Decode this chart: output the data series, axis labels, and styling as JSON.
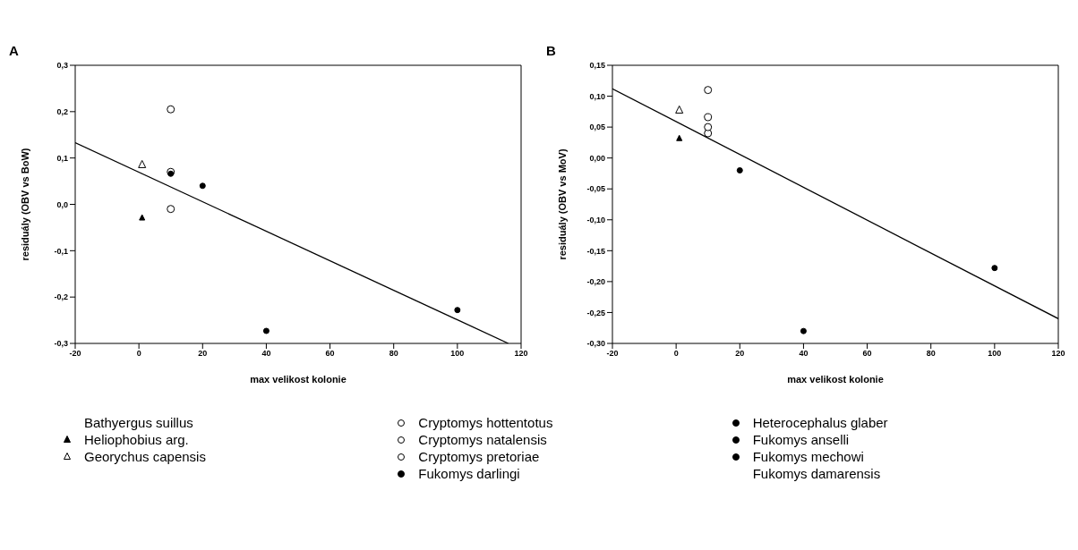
{
  "chart_data": [
    {
      "type": "scatter",
      "title": "A",
      "xlabel": "max velikost kolonie",
      "ylabel": "residuály (OBV vs BoW)",
      "legend": "bottom",
      "xlim": [
        -20,
        120
      ],
      "xticks": [
        -20,
        0,
        20,
        40,
        60,
        80,
        100,
        120
      ],
      "ylim": [
        -0.3,
        0.3
      ],
      "yticks": [
        {
          "value": -0.3,
          "label": "-0,3"
        },
        {
          "value": -0.2,
          "label": "-0,2"
        },
        {
          "value": -0.1,
          "label": "-0,1"
        },
        {
          "value": 0,
          "label": "0,0"
        },
        {
          "value": 0.1,
          "label": "0,1"
        },
        {
          "value": 0.2,
          "label": "0,2"
        },
        {
          "value": 0.3,
          "label": "0,3"
        }
      ],
      "series": [
        {
          "name": "Bathyergus suillus",
          "color": "#000000",
          "marker": "none"
        },
        {
          "name": "Heliophobius arg.",
          "color": "#000000",
          "marker": "triangle",
          "x": [
            1
          ],
          "values": [
            -0.03
          ]
        },
        {
          "name": "Georychus capensis",
          "color": "#ffffff",
          "marker": "triangle",
          "x": [
            1
          ],
          "values": [
            0.085
          ]
        },
        {
          "name": "Cryptomys hottentotus",
          "color": "#ffffff",
          "marker": "circle",
          "x": [
            10
          ],
          "values": [
            0.205
          ]
        },
        {
          "name": "Cryptomys natalensis",
          "color": "#ffffff",
          "marker": "circle",
          "x": [
            10
          ],
          "values": [
            -0.01
          ]
        },
        {
          "name": "Cryptomys pretoriae",
          "color": "#ffffff",
          "marker": "circle",
          "x": [
            10
          ],
          "values": [
            0.07
          ]
        },
        {
          "name": "Fukomys darlingi",
          "color": "#000000",
          "marker": "circle",
          "x": [
            10
          ],
          "values": [
            0.066
          ]
        },
        {
          "name": "Heterocephalus glaber",
          "color": "#000000",
          "marker": "circle",
          "x": [
            100
          ],
          "values": [
            -0.228
          ]
        },
        {
          "name": "Fukomys anselli",
          "color": "#000000",
          "marker": "circle",
          "x": [
            20
          ],
          "values": [
            0.04
          ]
        },
        {
          "name": "Fukomys mechowi",
          "color": "#000000",
          "marker": "circle",
          "x": [
            40
          ],
          "values": [
            -0.273
          ]
        },
        {
          "name": "Fukomys damarensis",
          "color": "#000000",
          "marker": "none"
        },
        {
          "type": "line",
          "color": "#000000",
          "x": [
            -20,
            116
          ],
          "values": [
            0.133,
            -0.3
          ]
        }
      ]
    },
    {
      "type": "scatter",
      "title": "B",
      "xlabel": "max velikost kolonie",
      "ylabel": "residuály (OBV vs MoV)",
      "xlim": [
        -20,
        120
      ],
      "xticks": [
        -20,
        0,
        20,
        40,
        60,
        80,
        100,
        120
      ],
      "ylim": [
        -0.3,
        0.15
      ],
      "yticks": [
        {
          "value": -0.3,
          "label": "-0,30"
        },
        {
          "value": -0.25,
          "label": "-0,25"
        },
        {
          "value": -0.2,
          "label": "-0,20"
        },
        {
          "value": -0.15,
          "label": "-0,15"
        },
        {
          "value": -0.1,
          "label": "-0,10"
        },
        {
          "value": -0.05,
          "label": "-0,05"
        },
        {
          "value": 0,
          "label": "0,00"
        },
        {
          "value": 0.05,
          "label": "0,05"
        },
        {
          "value": 0.1,
          "label": "0,10"
        },
        {
          "value": 0.15,
          "label": "0,15"
        }
      ],
      "series": [
        {
          "color": "#000000",
          "marker": "triangle",
          "x": [
            1
          ],
          "values": [
            0.031
          ]
        },
        {
          "color": "#ffffff",
          "marker": "triangle",
          "x": [
            1
          ],
          "values": [
            0.077
          ]
        },
        {
          "color": "#ffffff",
          "marker": "circle",
          "x": [
            10
          ],
          "values": [
            0.11
          ]
        },
        {
          "color": "#ffffff",
          "marker": "circle",
          "x": [
            10
          ],
          "values": [
            0.04
          ]
        },
        {
          "color": "#ffffff",
          "marker": "circle",
          "x": [
            10
          ],
          "values": [
            0.066
          ]
        },
        {
          "color": "#ffffff",
          "marker": "circle",
          "x": [
            10
          ],
          "values": [
            0.05
          ]
        },
        {
          "color": "#000000",
          "marker": "circle",
          "x": [
            100
          ],
          "values": [
            -0.178
          ]
        },
        {
          "color": "#000000",
          "marker": "circle",
          "x": [
            20
          ],
          "values": [
            -0.02
          ]
        },
        {
          "color": "#000000",
          "marker": "circle",
          "x": [
            40
          ],
          "values": [
            -0.28
          ]
        },
        {
          "type": "line",
          "color": "#000000",
          "x": [
            -20,
            120
          ],
          "values": [
            0.112,
            -0.26
          ]
        }
      ]
    }
  ]
}
